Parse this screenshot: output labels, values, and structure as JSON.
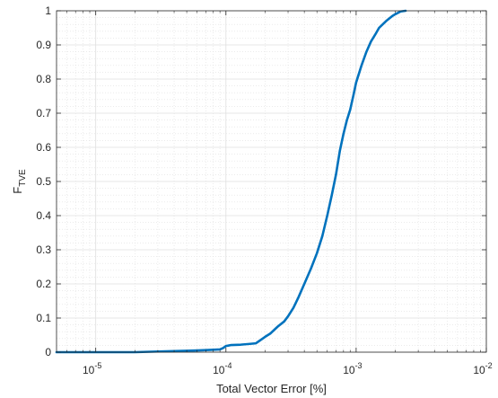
{
  "chart_data": {
    "type": "line",
    "title": "",
    "xlabel": "Total Vector Error [%]",
    "ylabel": {
      "main": "F",
      "subscript": "TVE"
    },
    "x_scale": "log",
    "xlim": [
      5e-06,
      0.01
    ],
    "ylim": [
      0,
      1
    ],
    "grid": true,
    "minor_grid": true,
    "legend": "none",
    "x_ticks": [
      {
        "value": 1e-05,
        "base": "10",
        "exp": "-5"
      },
      {
        "value": 0.0001,
        "base": "10",
        "exp": "-4"
      },
      {
        "value": 0.001,
        "base": "10",
        "exp": "-3"
      },
      {
        "value": 0.01,
        "base": "10",
        "exp": "-2"
      }
    ],
    "y_ticks": [
      {
        "value": 0,
        "label": "0"
      },
      {
        "value": 0.1,
        "label": "0.1"
      },
      {
        "value": 0.2,
        "label": "0.2"
      },
      {
        "value": 0.3,
        "label": "0.3"
      },
      {
        "value": 0.4,
        "label": "0.4"
      },
      {
        "value": 0.5,
        "label": "0.5"
      },
      {
        "value": 0.6,
        "label": "0.6"
      },
      {
        "value": 0.7,
        "label": "0.7"
      },
      {
        "value": 0.8,
        "label": "0.8"
      },
      {
        "value": 0.9,
        "label": "0.9"
      },
      {
        "value": 1,
        "label": "1"
      }
    ],
    "colors": {
      "line": "#0072bd",
      "axis": "#262626",
      "grid": "#dfdfdf"
    },
    "series": [
      {
        "x": [
          5e-06,
          1e-05,
          2e-05,
          3e-05,
          4e-05,
          5e-05,
          6e-05,
          7e-05,
          8e-05,
          9e-05,
          9.5e-05,
          0.0001,
          0.00011,
          0.00013,
          0.00015,
          0.00017,
          0.0002,
          0.00022,
          0.00025,
          0.00028,
          0.0003,
          0.00033,
          0.00036,
          0.0004,
          0.00045,
          0.0005,
          0.00055,
          0.0006,
          0.00065,
          0.0007,
          0.00075,
          0.0008,
          0.00085,
          0.0009,
          0.00095,
          0.001,
          0.0011,
          0.0012,
          0.0013,
          0.0014,
          0.0015,
          0.0017,
          0.0019,
          0.002,
          0.0022,
          0.0024
        ],
        "y": [
          0,
          0,
          0,
          0.002,
          0.003,
          0.004,
          0.005,
          0.006,
          0.007,
          0.008,
          0.012,
          0.018,
          0.021,
          0.022,
          0.024,
          0.026,
          0.045,
          0.055,
          0.075,
          0.09,
          0.105,
          0.13,
          0.16,
          0.2,
          0.245,
          0.29,
          0.34,
          0.4,
          0.46,
          0.52,
          0.59,
          0.64,
          0.68,
          0.71,
          0.75,
          0.79,
          0.84,
          0.88,
          0.91,
          0.93,
          0.95,
          0.97,
          0.985,
          0.99,
          0.998,
          1
        ]
      }
    ]
  }
}
